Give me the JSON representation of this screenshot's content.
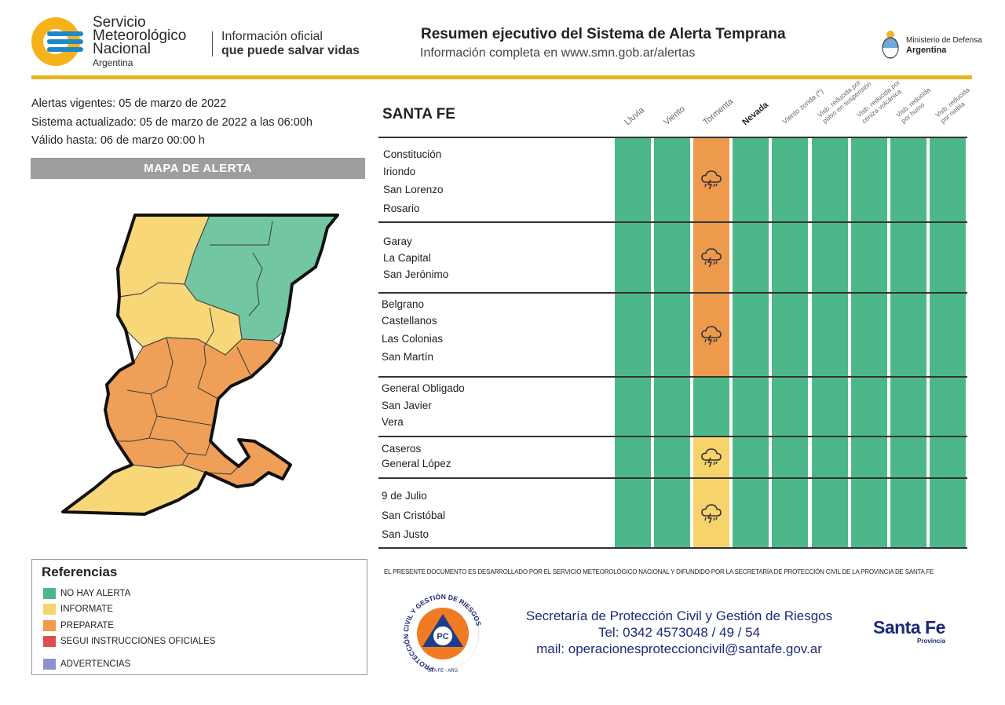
{
  "header": {
    "org_line1": "Servicio",
    "org_line2": "Meteorológico",
    "org_line3": "Nacional",
    "org_country": "Argentina",
    "slogan_line1": "Información oficial",
    "slogan_line2": "que puede salvar vidas",
    "title": "Resumen ejecutivo del Sistema de Alerta Temprana",
    "subtitle": "Información completa en www.smn.gob.ar/alertas",
    "ministry_line1": "Ministerio de Defensa",
    "ministry_line2": "Argentina"
  },
  "info": {
    "alerts_date": "Alertas vigentes: 05 de marzo de 2022",
    "updated": "Sistema actualizado: 05 de marzo de 2022 a las 06:00h",
    "valid_until": "Válido hasta: 06 de marzo 00:00 h"
  },
  "map": {
    "title": "MAPA DE ALERTA"
  },
  "references": {
    "title": "Referencias",
    "items": [
      {
        "label": "NO HAY ALERTA",
        "color": "#4cb88a"
      },
      {
        "label": "INFORMATE",
        "color": "#f7d36b"
      },
      {
        "label": "PREPARATE",
        "color": "#ee9a4d"
      },
      {
        "label": "SEGUI INSTRUCCIONES OFICIALES",
        "color": "#d9504f"
      },
      {
        "label": "ADVERTENCIAS",
        "color": "#8f8fcf"
      }
    ]
  },
  "table": {
    "province": "SANTA FE",
    "columns": [
      "Lluvia",
      "Viento",
      "Tormenta",
      "Nevada",
      "Viento zonda (*)",
      "Visb. reducida por | polvo en suspensión",
      "Visb. reducida por | ceniza volcánica",
      "Visb. reducida | por humo",
      "Visb. reducida | por niebla"
    ],
    "groups": [
      {
        "departments": [
          "Constitución",
          "Iriondo",
          "San Lorenzo",
          "Rosario"
        ],
        "alerts": [
          "none",
          "none",
          "orange",
          "none",
          "none",
          "none",
          "none",
          "none",
          "none"
        ]
      },
      {
        "departments": [
          "Garay",
          "La Capital",
          "San Jerónimo"
        ],
        "alerts": [
          "none",
          "none",
          "orange",
          "none",
          "none",
          "none",
          "none",
          "none",
          "none"
        ]
      },
      {
        "departments": [
          "Belgrano",
          "Castellanos",
          "Las Colonias",
          "San Martín"
        ],
        "alerts": [
          "none",
          "none",
          "orange",
          "none",
          "none",
          "none",
          "none",
          "none",
          "none"
        ]
      },
      {
        "departments": [
          "General Obligado",
          "San Javier",
          "Vera"
        ],
        "alerts": [
          "none",
          "none",
          "none",
          "none",
          "none",
          "none",
          "none",
          "none",
          "none"
        ]
      },
      {
        "departments": [
          "Caseros",
          "General López"
        ],
        "alerts": [
          "none",
          "none",
          "yellow",
          "none",
          "none",
          "none",
          "none",
          "none",
          "none"
        ]
      },
      {
        "departments": [
          "9 de Julio",
          "San Cristóbal",
          "San Justo"
        ],
        "alerts": [
          "none",
          "none",
          "yellow",
          "none",
          "none",
          "none",
          "none",
          "none",
          "none"
        ]
      }
    ],
    "colors": {
      "none": "#4cb88a",
      "yellow": "#f7d36b",
      "orange": "#ee9a4d"
    },
    "storm_icon": "storm-cloud-icon"
  },
  "footer": {
    "disclaimer": "EL PRESENTE DOCUMENTO ES DESARROLLADO POR EL SERVICIO METEOROLÓGICO NACIONAL Y DIFUNDIDO POR LA SECRETARÍA DE PROTECCIÓN CIVIL DE LA PROVINCIA DE SANTA FE",
    "pc_logo_text": "PROTECCIÓN CIVIL Y GESTIÓN DE RIESGOS",
    "pc_logo_bottom": "STA FE - ARG",
    "pc_logo_center": "PC",
    "secretaria": "Secretaría de Protección Civil y Gestión de Riesgos",
    "phone": "Tel: 0342 4573048 / 49 / 54",
    "mail": "mail: operacionesproteccioncivil@santafe.gov.ar",
    "santa_fe": "Santa Fe",
    "provincia": "Provincia"
  }
}
